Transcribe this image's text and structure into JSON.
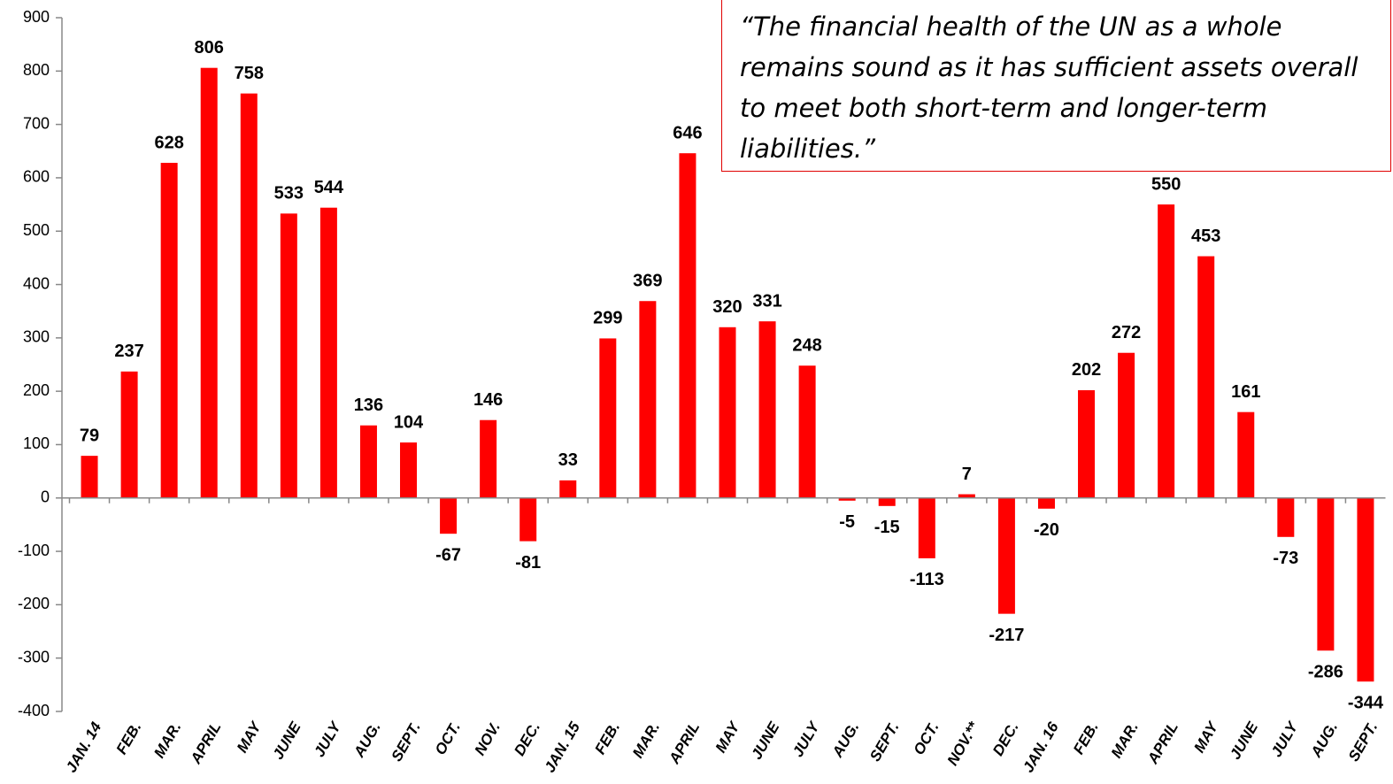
{
  "chart_data": {
    "type": "bar",
    "annotation": [
      "“The financial health of the UN as a whole",
      "remains sound as it has sufficient assets overall",
      "to meet both short-term and longer-term",
      "liabilities.”"
    ],
    "categories": [
      "JAN. 14",
      "FEB.",
      "MAR.",
      "APRIL",
      "MAY",
      "JUNE",
      "JULY",
      "AUG.",
      "SEPT.",
      "OCT.",
      "NOV.",
      "DEC.",
      "JAN. 15",
      "FEB.",
      "MAR.",
      "APRIL",
      "MAY",
      "JUNE",
      "JULY",
      "AUG.",
      "SEPT.",
      "OCT.",
      "NOV.**",
      "DEC.",
      "JAN. 16",
      "FEB.",
      "MAR.",
      "APRIL",
      "MAY",
      "JUNE",
      "JULY",
      "AUG.",
      "SEPT."
    ],
    "values": [
      79,
      237,
      628,
      806,
      758,
      533,
      544,
      136,
      104,
      -67,
      146,
      -81,
      33,
      299,
      369,
      646,
      320,
      331,
      248,
      -5,
      -15,
      -113,
      7,
      -217,
      -20,
      202,
      272,
      550,
      453,
      161,
      -73,
      -286,
      -344
    ],
    "color": "#ff0000",
    "ylim": [
      -400,
      900
    ],
    "yticks": [
      -400,
      -300,
      -200,
      -100,
      0,
      100,
      200,
      300,
      400,
      500,
      600,
      700,
      800,
      900
    ],
    "grid": false
  }
}
